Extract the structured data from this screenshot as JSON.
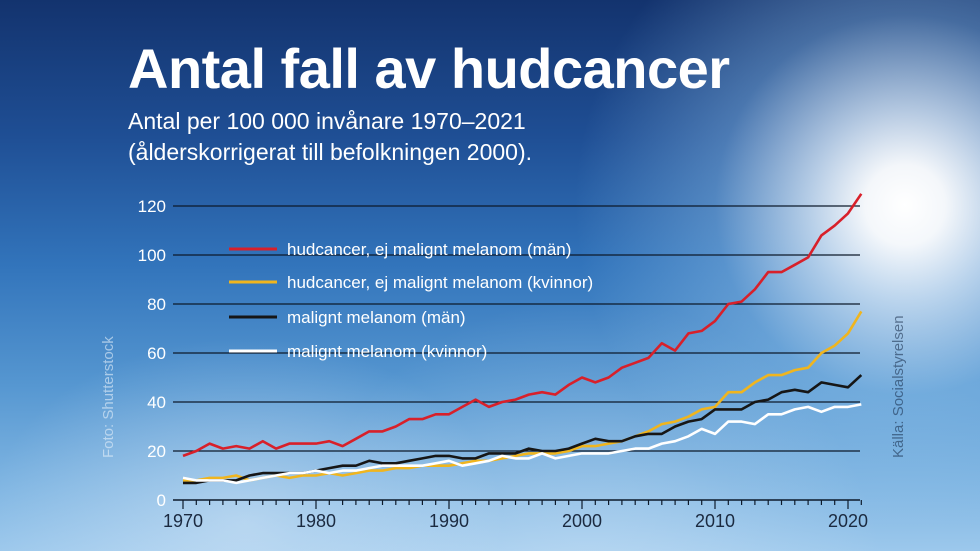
{
  "header": {
    "title": "Antal fall av hudcancer",
    "subtitle_line1": "Antal per 100 000 invånare 1970–2021",
    "subtitle_line2": "(ålderskorrigerat till befolkningen 2000)."
  },
  "credits": {
    "photo": "Foto: Shutterstock",
    "source": "Källa: Socialstyrelsen"
  },
  "chart_data": {
    "type": "line",
    "title": "Antal fall av hudcancer",
    "xlabel": "",
    "ylabel": "",
    "xlim": [
      1970,
      2021
    ],
    "ylim": [
      0,
      125
    ],
    "xticks": [
      1970,
      1980,
      1990,
      2000,
      2010,
      2020
    ],
    "yticks": [
      0,
      20,
      40,
      60,
      80,
      100,
      120
    ],
    "grid": "horizontal",
    "legend_placement": "top-left",
    "x": [
      1970,
      1971,
      1972,
      1973,
      1974,
      1975,
      1976,
      1977,
      1978,
      1979,
      1980,
      1981,
      1982,
      1983,
      1984,
      1985,
      1986,
      1987,
      1988,
      1989,
      1990,
      1991,
      1992,
      1993,
      1994,
      1995,
      1996,
      1997,
      1998,
      1999,
      2000,
      2001,
      2002,
      2003,
      2004,
      2005,
      2006,
      2007,
      2008,
      2009,
      2010,
      2011,
      2012,
      2013,
      2014,
      2015,
      2016,
      2017,
      2018,
      2019,
      2020,
      2021
    ],
    "series": [
      {
        "name": "hudcancer, ej malignt melanom (män)",
        "color": "#d8202a",
        "values": [
          18,
          20,
          23,
          21,
          22,
          21,
          24,
          21,
          23,
          23,
          23,
          24,
          22,
          25,
          28,
          28,
          30,
          33,
          33,
          35,
          35,
          38,
          41,
          38,
          40,
          41,
          43,
          44,
          43,
          47,
          50,
          48,
          50,
          54,
          56,
          58,
          64,
          61,
          68,
          69,
          73,
          80,
          81,
          86,
          93,
          93,
          96,
          99,
          108,
          112,
          117,
          125
        ]
      },
      {
        "name": "hudcancer, ej malignt melanom (kvinnor)",
        "color": "#f0b51e",
        "values": [
          8,
          8,
          9,
          9,
          10,
          8,
          9,
          10,
          9,
          10,
          10,
          11,
          10,
          11,
          12,
          12,
          13,
          13,
          14,
          14,
          14,
          15,
          16,
          16,
          17,
          18,
          19,
          19,
          19,
          20,
          22,
          22,
          23,
          24,
          26,
          28,
          31,
          32,
          34,
          37,
          38,
          44,
          44,
          48,
          51,
          51,
          53,
          54,
          60,
          63,
          68,
          77
        ]
      },
      {
        "name": "malignt melanom (män)",
        "color": "#161616",
        "values": [
          7,
          7,
          8,
          8,
          8,
          10,
          11,
          11,
          11,
          11,
          12,
          13,
          14,
          14,
          16,
          15,
          15,
          16,
          17,
          18,
          18,
          17,
          17,
          19,
          19,
          19,
          21,
          20,
          20,
          21,
          23,
          25,
          24,
          24,
          26,
          27,
          27,
          30,
          32,
          33,
          37,
          37,
          37,
          40,
          41,
          44,
          45,
          44,
          48,
          47,
          46,
          51
        ]
      },
      {
        "name": "malignt melanom (kvinnor)",
        "color": "#ffffff",
        "values": [
          9,
          8,
          8,
          8,
          7,
          8,
          9,
          10,
          11,
          11,
          12,
          11,
          12,
          12,
          13,
          14,
          14,
          14,
          14,
          15,
          16,
          14,
          15,
          16,
          18,
          17,
          17,
          19,
          17,
          18,
          19,
          19,
          19,
          20,
          21,
          21,
          23,
          24,
          26,
          29,
          27,
          32,
          32,
          31,
          35,
          35,
          37,
          38,
          36,
          38,
          38,
          39
        ]
      }
    ]
  }
}
